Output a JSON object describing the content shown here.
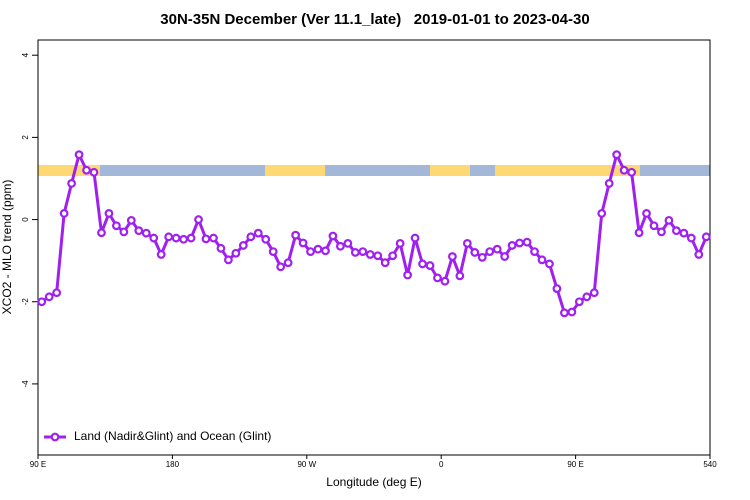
{
  "chart_data": {
    "type": "line",
    "title": "30N-35N December (Ver 11.1_late)   2019-01-01 to 2023-04-30",
    "xlabel": "Longitude (deg E)",
    "ylabel": "XCO2 - MLO trend (ppm)",
    "xlim": [
      90,
      540
    ],
    "ylim": [
      -5.73,
      4.37
    ],
    "xticks": [
      {
        "value": 90,
        "label": "90 E"
      },
      180,
      {
        "value": 270,
        "label": "90 W"
      },
      {
        "value": 360,
        "label": "0"
      },
      {
        "value": 450,
        "label": "90 E"
      },
      540
    ],
    "yticks": [
      -4,
      -2,
      0,
      2,
      4
    ],
    "legend": "bottom-left",
    "x": [
      92.5,
      97.5,
      102.5,
      107.5,
      112.5,
      117.5,
      122.5,
      127.5,
      132.5,
      137.5,
      142.5,
      147.5,
      152.5,
      157.5,
      162.5,
      167.5,
      172.5,
      177.5,
      182.5,
      187.5,
      192.5,
      197.5,
      202.5,
      207.5,
      212.5,
      217.5,
      222.5,
      227.5,
      232.5,
      237.5,
      242.5,
      247.5,
      252.5,
      257.5,
      262.5,
      267.5,
      272.5,
      277.5,
      282.5,
      287.5,
      292.5,
      297.5,
      302.5,
      307.5,
      312.5,
      317.5,
      322.5,
      327.5,
      332.5,
      337.5,
      342.5,
      347.5,
      352.5,
      357.5,
      362.5,
      367.5,
      372.5,
      377.5,
      382.5,
      387.5,
      392.5,
      397.5,
      402.5,
      407.5,
      412.5,
      417.5,
      422.5,
      427.5,
      432.5,
      437.5,
      442.5,
      447.5,
      452.5,
      457.5,
      462.5,
      467.5,
      472.5,
      477.5,
      482.5,
      487.5,
      492.5,
      497.5,
      502.5,
      507.5,
      512.5,
      517.5,
      522.5,
      527.5,
      532.5,
      537.5
    ],
    "series": [
      {
        "name": "Land (Nadir&Glint) and Ocean (Glint)",
        "color": "#a020f0",
        "values": [
          -2.0,
          -1.88,
          -1.78,
          0.15,
          0.88,
          1.58,
          1.2,
          1.15,
          -0.32,
          0.15,
          -0.15,
          -0.3,
          -0.02,
          -0.27,
          -0.33,
          -0.45,
          -0.85,
          -0.42,
          -0.45,
          -0.48,
          -0.45,
          0.0,
          -0.47,
          -0.45,
          -0.7,
          -0.98,
          -0.82,
          -0.63,
          -0.42,
          -0.33,
          -0.48,
          -0.78,
          -1.15,
          -1.05,
          -0.38,
          -0.57,
          -0.78,
          -0.72,
          -0.76,
          -0.4,
          -0.65,
          -0.58,
          -0.8,
          -0.78,
          -0.85,
          -0.88,
          -1.05,
          -0.88,
          -0.58,
          -1.35,
          -0.45,
          -1.08,
          -1.12,
          -1.42,
          -1.5,
          -0.9,
          -1.37,
          -0.58,
          -0.8,
          -0.92,
          -0.78,
          -0.72,
          -0.9,
          -0.63,
          -0.57,
          -0.55,
          -0.78,
          -0.98,
          -1.08,
          -1.68,
          -2.27,
          -2.25,
          -2.0,
          -1.88,
          -1.78,
          0.15,
          0.88,
          1.58,
          1.2,
          1.15,
          -0.32,
          0.15,
          -0.15,
          -0.3,
          -0.02,
          -0.27,
          -0.33,
          -0.45,
          -0.85,
          -0.42
        ]
      }
    ]
  }
}
